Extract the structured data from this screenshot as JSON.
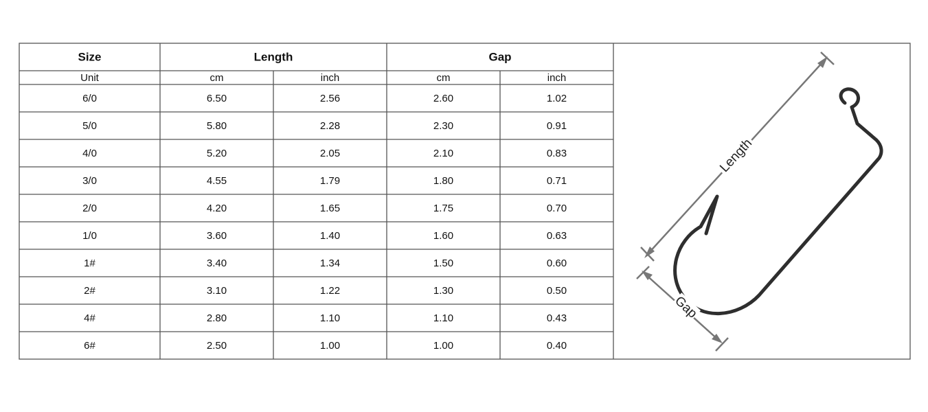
{
  "table": {
    "header": [
      "Size",
      "Length",
      "Gap"
    ],
    "units": [
      "Unit",
      "cm",
      "inch",
      "cm",
      "inch"
    ],
    "rows": [
      [
        "6/0",
        "6.50",
        "2.56",
        "2.60",
        "1.02"
      ],
      [
        "5/0",
        "5.80",
        "2.28",
        "2.30",
        "0.91"
      ],
      [
        "4/0",
        "5.20",
        "2.05",
        "2.10",
        "0.83"
      ],
      [
        "3/0",
        "4.55",
        "1.79",
        "1.80",
        "0.71"
      ],
      [
        "2/0",
        "4.20",
        "1.65",
        "1.75",
        "0.70"
      ],
      [
        "1/0",
        "3.60",
        "1.40",
        "1.60",
        "0.63"
      ],
      [
        "1#",
        "3.40",
        "1.34",
        "1.50",
        "0.60"
      ],
      [
        "2#",
        "3.10",
        "1.22",
        "1.30",
        "0.50"
      ],
      [
        "4#",
        "2.80",
        "1.10",
        "1.10",
        "0.43"
      ],
      [
        "6#",
        "2.50",
        "1.00",
        "1.00",
        "0.40"
      ]
    ]
  },
  "diagram": {
    "length_label": "Length",
    "gap_label": "Gap"
  }
}
